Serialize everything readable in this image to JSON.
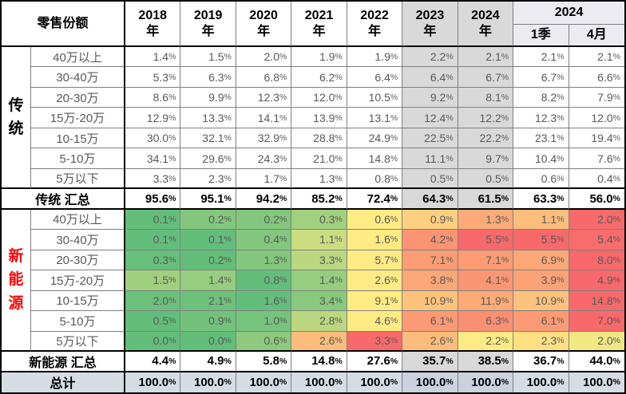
{
  "chart_data": {
    "type": "table",
    "title": "零售份额",
    "unit": "%",
    "columns": [
      "2018年",
      "2019年",
      "2020年",
      "2021年",
      "2022年",
      "2023年",
      "2024年",
      "2024年1季",
      "2024年4月"
    ],
    "groups": [
      {
        "name": "传统",
        "heatmap": false,
        "rows": [
          {
            "label": "40万以上",
            "values": [
              1.4,
              1.5,
              2.0,
              1.9,
              1.9,
              2.2,
              2.1,
              2.1,
              2.1
            ]
          },
          {
            "label": "30-40万",
            "values": [
              5.3,
              6.3,
              6.8,
              6.2,
              6.4,
              6.4,
              6.7,
              6.7,
              6.6
            ]
          },
          {
            "label": "20-30万",
            "values": [
              8.6,
              9.9,
              12.3,
              12.0,
              10.5,
              9.2,
              8.1,
              8.2,
              7.9
            ]
          },
          {
            "label": "15万-20万",
            "values": [
              12.9,
              13.3,
              14.1,
              13.9,
              13.1,
              12.4,
              12.2,
              12.3,
              12.0
            ]
          },
          {
            "label": "10-15万",
            "values": [
              30.0,
              32.1,
              32.9,
              28.8,
              24.9,
              22.5,
              22.2,
              23.1,
              19.4
            ]
          },
          {
            "label": "5-10万",
            "values": [
              34.1,
              29.6,
              24.3,
              21.0,
              14.8,
              11.1,
              9.7,
              10.4,
              7.6
            ]
          },
          {
            "label": "5万以下",
            "values": [
              3.3,
              2.3,
              1.7,
              1.3,
              0.8,
              0.5,
              0.5,
              0.6,
              0.4
            ]
          }
        ],
        "summary": {
          "label": "传统 汇总",
          "values": [
            95.6,
            95.1,
            94.2,
            85.2,
            72.4,
            64.3,
            61.5,
            63.3,
            56.0
          ]
        }
      },
      {
        "name": "新能源",
        "heatmap": true,
        "rows": [
          {
            "label": "40万以上",
            "values": [
              0.1,
              0.2,
              0.2,
              0.3,
              0.6,
              0.9,
              1.3,
              1.1,
              2.0
            ]
          },
          {
            "label": "30-40万",
            "values": [
              0.1,
              0.1,
              0.4,
              1.1,
              1.6,
              4.2,
              5.5,
              5.5,
              5.4
            ]
          },
          {
            "label": "20-30万",
            "values": [
              0.3,
              0.2,
              1.3,
              3.3,
              5.7,
              7.1,
              7.1,
              6.9,
              8.0
            ]
          },
          {
            "label": "15万-20万",
            "values": [
              1.5,
              1.4,
              0.8,
              1.4,
              2.6,
              3.8,
              4.1,
              3.9,
              4.9
            ]
          },
          {
            "label": "10-15万",
            "values": [
              2.0,
              2.1,
              1.6,
              3.4,
              9.1,
              10.9,
              11.9,
              10.9,
              14.8
            ]
          },
          {
            "label": "5-10万",
            "values": [
              0.5,
              0.9,
              1.0,
              2.8,
              4.6,
              6.1,
              6.3,
              6.1,
              7.0
            ]
          },
          {
            "label": "5万以下",
            "values": [
              0.0,
              0.0,
              0.6,
              2.6,
              3.3,
              2.6,
              2.2,
              2.3,
              2.0
            ]
          }
        ],
        "summary": {
          "label": "新能源 汇总",
          "values": [
            4.4,
            4.9,
            5.8,
            14.8,
            27.6,
            35.7,
            38.5,
            36.7,
            44.0
          ]
        }
      }
    ],
    "total": {
      "label": "总计",
      "values": [
        100.0,
        100.0,
        100.0,
        100.0,
        100.0,
        100.0,
        100.0,
        100.0,
        100.0
      ]
    }
  },
  "ui": {
    "corner_label": "零售份额",
    "year_headers": [
      {
        "line1": "2018",
        "line2": "年"
      },
      {
        "line1": "2019",
        "line2": "年"
      },
      {
        "line1": "2020",
        "line2": "年"
      },
      {
        "line1": "2021",
        "line2": "年"
      },
      {
        "line1": "2022",
        "line2": "年"
      },
      {
        "line1": "2023",
        "line2": "年"
      },
      {
        "line1": "2024",
        "line2": "年"
      }
    ],
    "span_header": {
      "label": "2024",
      "subs": [
        "1季",
        "4月"
      ]
    },
    "grey_column_indexes": [
      5,
      6
    ],
    "colors": {
      "grey_column_bg": "#D9D9D9",
      "subheader_bg": "#EBEBF1",
      "total_row_bg": "#D6DCE4",
      "total_row_grey_bg": "#CBD2DD",
      "heat_min": "#63BE7B",
      "heat_mid": "#FFEB84",
      "heat_max": "#F8696B",
      "value_text": "#595959",
      "group_name_colors": [
        "#000000",
        "#FF0000"
      ]
    }
  }
}
